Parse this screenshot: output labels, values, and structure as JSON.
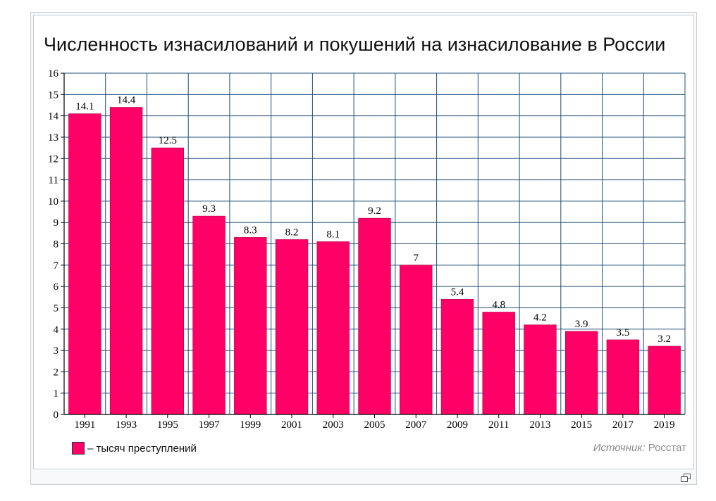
{
  "chart_data": {
    "type": "bar",
    "title": "Численность изнасилований и покушений на изнасилование в России",
    "categories": [
      "1991",
      "1993",
      "1995",
      "1997",
      "1999",
      "2001",
      "2003",
      "2005",
      "2007",
      "2009",
      "2011",
      "2013",
      "2015",
      "2017",
      "2019"
    ],
    "values": [
      14.1,
      14.4,
      12.5,
      9.3,
      8.3,
      8.2,
      8.1,
      9.2,
      7,
      5.4,
      4.8,
      4.2,
      3.9,
      3.5,
      3.2
    ],
    "value_labels": [
      "14.1",
      "14.4",
      "12.5",
      "9.3",
      "8.3",
      "8.2",
      "8.1",
      "9.2",
      "7",
      "5.4",
      "4.8",
      "4.2",
      "3.9",
      "3.5",
      "3.2"
    ],
    "yticks": [
      "0",
      "1",
      "2",
      "3",
      "4",
      "5",
      "6",
      "7",
      "8",
      "9",
      "10",
      "11",
      "12",
      "13",
      "14",
      "15",
      "16"
    ],
    "ylim": [
      0,
      16
    ],
    "grid": true,
    "bar_color": "#ff0066",
    "grid_color": "#1f4e79",
    "legend": {
      "label": "– тысяч преступлений",
      "position": "bottom-left"
    },
    "source": {
      "prefix": "Источник:",
      "name": "Росстат"
    }
  },
  "icons": {
    "enlarge": "enlarge-icon"
  }
}
